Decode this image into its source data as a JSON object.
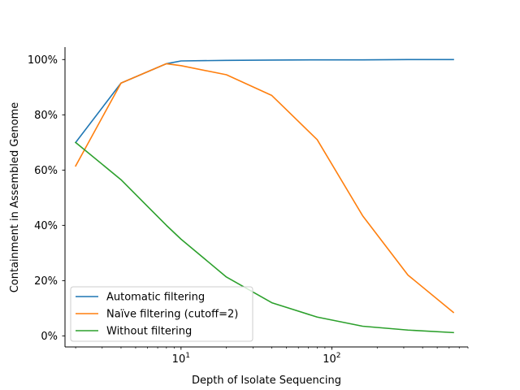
{
  "chart_data": {
    "type": "line",
    "title": "",
    "xlabel": "Depth of Isolate Sequencing",
    "ylabel": "Containment in Assembled Genome",
    "xscale": "log",
    "xlim": [
      1.7,
      800
    ],
    "ylim": [
      -0.04,
      1.045
    ],
    "x_ticks": [
      {
        "value": 10,
        "base": "10",
        "exp": "1"
      },
      {
        "value": 100,
        "base": "10",
        "exp": "2"
      }
    ],
    "y_ticks": [
      {
        "value": 0,
        "label": "0%"
      },
      {
        "value": 0.2,
        "label": "20%"
      },
      {
        "value": 0.4,
        "label": "40%"
      },
      {
        "value": 0.6,
        "label": "60%"
      },
      {
        "value": 0.8,
        "label": "80%"
      },
      {
        "value": 1.0,
        "label": "100%"
      }
    ],
    "grid": false,
    "legend_position": "lower-left",
    "series": [
      {
        "name": "Automatic filtering",
        "color": "#1f77b4",
        "x": [
          2,
          4,
          8,
          10,
          20,
          40,
          80,
          160,
          320,
          640
        ],
        "y": [
          0.7,
          0.915,
          0.985,
          0.995,
          0.997,
          0.998,
          0.999,
          0.999,
          1.0,
          1.0
        ]
      },
      {
        "name": "Naïve filtering (cutoff=2)",
        "color": "#ff7f0e",
        "x": [
          2,
          4,
          8,
          10,
          20,
          40,
          80,
          160,
          320,
          640
        ],
        "y": [
          0.615,
          0.915,
          0.985,
          0.978,
          0.945,
          0.87,
          0.71,
          0.435,
          0.22,
          0.085
        ]
      },
      {
        "name": "Without filtering",
        "color": "#2ca02c",
        "x": [
          2,
          4,
          8,
          10,
          20,
          40,
          80,
          160,
          320,
          640
        ],
        "y": [
          0.7,
          0.565,
          0.4,
          0.35,
          0.213,
          0.12,
          0.068,
          0.035,
          0.021,
          0.012
        ]
      }
    ]
  }
}
